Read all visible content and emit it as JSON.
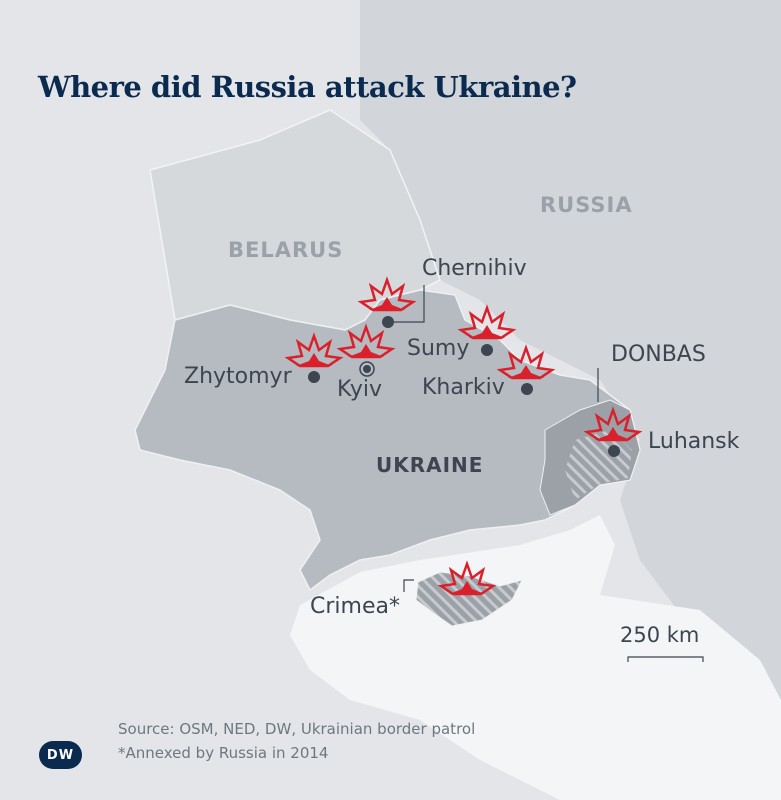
{
  "title": "Where did Russia attack Ukraine?",
  "countries": {
    "russia": "RUSSIA",
    "belarus": "BELARUS",
    "ukraine": "UKRAINE"
  },
  "cities": {
    "chernihiv": "Chernihiv",
    "sumy": "Sumy",
    "zhytomyr": "Zhytomyr",
    "kyiv": "Kyiv",
    "kharkiv": "Kharkiv",
    "luhansk": "Luhansk",
    "crimea": "Crimea*"
  },
  "regions": {
    "donbas": "DONBAS"
  },
  "scale": {
    "label": "250 km"
  },
  "source": "Source: OSM, NED, DW, Ukrainian border patrol",
  "footnote": "*Annexed by Russia in 2014",
  "logo": "DW",
  "colors": {
    "attack": "#d9202b",
    "title": "#0b2a4f",
    "ukraine": "#b6bbc1",
    "donbas": "#9ca1a8",
    "sea": "#f4f5f6"
  },
  "icons": {
    "attack": "explosion-icon",
    "city": "dot-icon",
    "capital": "capital-circle-icon"
  }
}
